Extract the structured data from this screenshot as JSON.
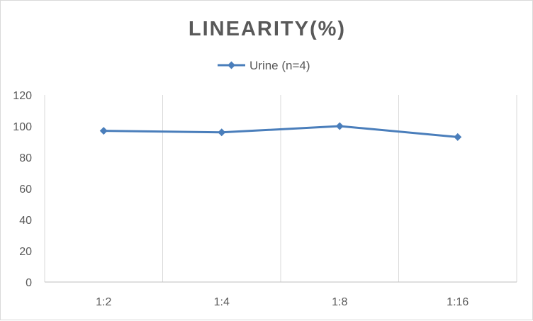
{
  "chart_data": {
    "type": "line",
    "title": "LINEARITY(%)",
    "categories": [
      "1:2",
      "1:4",
      "1:8",
      "1:16"
    ],
    "series": [
      {
        "name": "Urine (n=4)",
        "values": [
          97,
          96,
          100,
          93
        ],
        "color": "#4a7ebb",
        "marker": "diamond"
      }
    ],
    "ylim": [
      0,
      120
    ],
    "yticks": [
      0,
      20,
      40,
      60,
      80,
      100,
      120
    ],
    "xlabel": "",
    "ylabel": "",
    "grid": {
      "vertical": true,
      "horizontal": false
    },
    "legend_position": "top"
  }
}
